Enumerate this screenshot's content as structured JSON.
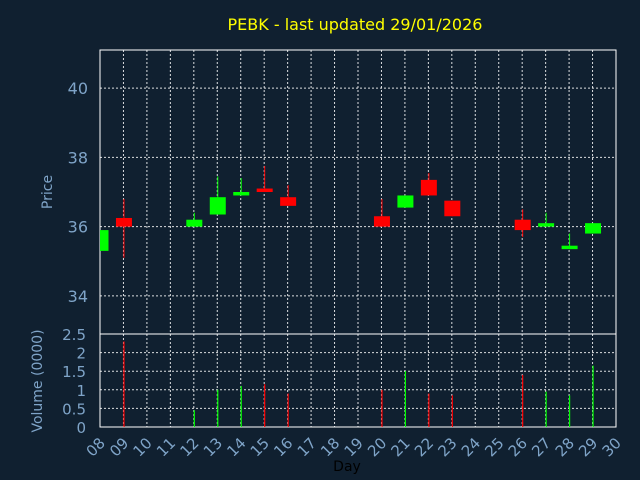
{
  "chart_data": [
    {
      "type": "candlestick",
      "title": "PEBK - last updated 29/01/2026",
      "ylabel": "Price",
      "xlabel": "Day",
      "ylim": [
        32.9,
        41.1
      ],
      "yticks": [
        34,
        36,
        38,
        40
      ],
      "grid": true,
      "x_ticks": [
        "08",
        "09",
        "10",
        "11",
        "12",
        "13",
        "14",
        "15",
        "16",
        "17",
        "18",
        "19",
        "20",
        "21",
        "22",
        "23",
        "24",
        "25",
        "26",
        "27",
        "28",
        "29",
        "30"
      ],
      "candles": [
        {
          "day": 8,
          "open": 35.3,
          "close": 35.9,
          "high": 35.9,
          "low": 35.3
        },
        {
          "day": 9,
          "open": 36.25,
          "close": 36.0,
          "high": 36.8,
          "low": 35.1
        },
        {
          "day": 12,
          "open": 36.0,
          "close": 36.2,
          "high": 36.4,
          "low": 36.0
        },
        {
          "day": 13,
          "open": 36.35,
          "close": 36.85,
          "high": 37.45,
          "low": 36.35
        },
        {
          "day": 14,
          "open": 36.9,
          "close": 37.0,
          "high": 37.4,
          "low": 36.9
        },
        {
          "day": 15,
          "open": 37.1,
          "close": 37.0,
          "high": 37.75,
          "low": 37.0
        },
        {
          "day": 16,
          "open": 36.85,
          "close": 36.6,
          "high": 37.2,
          "low": 36.6
        },
        {
          "day": 20,
          "open": 36.3,
          "close": 36.0,
          "high": 36.8,
          "low": 36.0
        },
        {
          "day": 21,
          "open": 36.55,
          "close": 36.9,
          "high": 36.9,
          "low": 36.55
        },
        {
          "day": 22,
          "open": 37.35,
          "close": 36.9,
          "high": 37.55,
          "low": 36.9
        },
        {
          "day": 23,
          "open": 36.75,
          "close": 36.3,
          "high": 36.75,
          "low": 36.3
        },
        {
          "day": 26,
          "open": 36.2,
          "close": 35.9,
          "high": 36.5,
          "low": 35.7
        },
        {
          "day": 27,
          "open": 36.0,
          "close": 36.1,
          "high": 36.4,
          "low": 36.0
        },
        {
          "day": 28,
          "open": 35.35,
          "close": 35.45,
          "high": 35.8,
          "low": 35.35
        },
        {
          "day": 29,
          "open": 35.8,
          "close": 36.1,
          "high": 36.1,
          "low": 35.8
        }
      ]
    },
    {
      "type": "bar",
      "ylabel": "Volume (0000)",
      "ylim": [
        0,
        2.5
      ],
      "yticks": [
        0,
        0.5,
        1,
        1.5,
        2,
        2.5
      ],
      "grid": true,
      "volumes": [
        {
          "day": 9,
          "value": 2.3,
          "direction": "down"
        },
        {
          "day": 12,
          "value": 0.45,
          "direction": "up"
        },
        {
          "day": 13,
          "value": 1.0,
          "direction": "up"
        },
        {
          "day": 14,
          "value": 1.1,
          "direction": "up"
        },
        {
          "day": 15,
          "value": 1.15,
          "direction": "down"
        },
        {
          "day": 16,
          "value": 0.9,
          "direction": "down"
        },
        {
          "day": 20,
          "value": 1.0,
          "direction": "down"
        },
        {
          "day": 21,
          "value": 1.5,
          "direction": "up"
        },
        {
          "day": 22,
          "value": 0.9,
          "direction": "down"
        },
        {
          "day": 23,
          "value": 0.85,
          "direction": "down"
        },
        {
          "day": 26,
          "value": 1.4,
          "direction": "down"
        },
        {
          "day": 27,
          "value": 0.95,
          "direction": "up"
        },
        {
          "day": 28,
          "value": 0.85,
          "direction": "up"
        },
        {
          "day": 29,
          "value": 1.65,
          "direction": "up"
        }
      ]
    }
  ],
  "colors": {
    "background": "#102030",
    "title": "#FFFF00",
    "axis_text": "#7FA4C8",
    "up": "#00FF00",
    "down": "#FF0000"
  }
}
